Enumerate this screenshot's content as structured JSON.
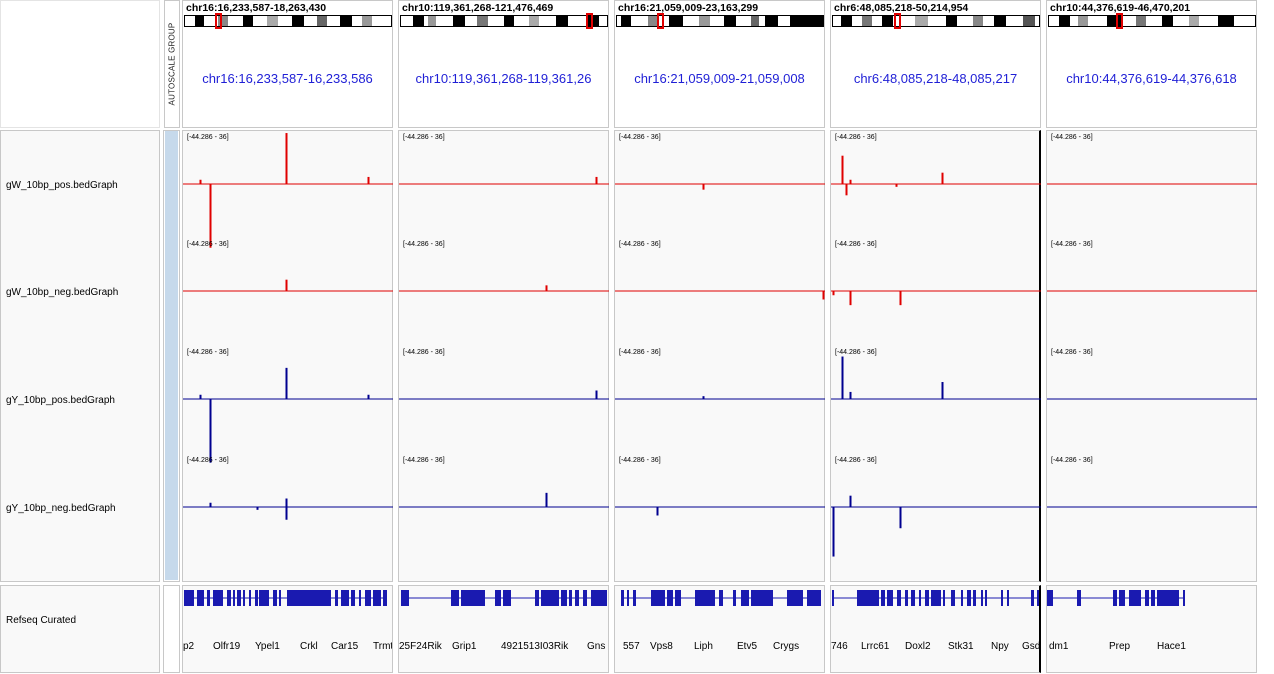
{
  "header": {
    "autoscale_label": "AUTOSCALE GROUP"
  },
  "tracks": [
    {
      "name": "gW_10bp_pos.bedGraph",
      "color": "#e00000"
    },
    {
      "name": "gW_10bp_neg.bedGraph",
      "color": "#e00000"
    },
    {
      "name": "gY_10bp_pos.bedGraph",
      "color": "#000090"
    },
    {
      "name": "gY_10bp_neg.bedGraph",
      "color": "#000090"
    }
  ],
  "data_range": "[-44.286 - 36]",
  "annotation_track": {
    "name": "Refseq Curated",
    "color": "#1a1ab0"
  },
  "panels": [
    {
      "locus": "chr16:16,233,587-18,263,430",
      "center": "chr16:16,233,587-16,233,586",
      "genes": [
        "p2",
        "Olfr19",
        "Ypel1",
        "Crkl",
        "Car15",
        "Trmt"
      ],
      "signals": [
        [
          [
            0.08,
            3
          ],
          [
            0.13,
            -45
          ],
          [
            0.49,
            36
          ],
          [
            0.88,
            5
          ]
        ],
        [
          [
            0.49,
            8
          ]
        ],
        [
          [
            0.08,
            3
          ],
          [
            0.13,
            -45
          ],
          [
            0.49,
            22
          ],
          [
            0.88,
            3
          ]
        ],
        [
          [
            0.13,
            3
          ],
          [
            0.35,
            -2
          ],
          [
            0.49,
            -9
          ],
          [
            0.49,
            6
          ]
        ]
      ]
    },
    {
      "locus": "chr10:119,361,268-121,476,469",
      "center": "chr10:119,361,268-119,361,26",
      "genes": [
        "25F24Rik",
        "Grip1",
        "4921513I03Rik",
        "Gns"
      ],
      "signals": [
        [
          [
            0.94,
            5
          ]
        ],
        [
          [
            0.7,
            4
          ]
        ],
        [
          [
            0.94,
            6
          ]
        ],
        [
          [
            0.7,
            10
          ]
        ]
      ]
    },
    {
      "locus": "chr16:21,059,009-23,163,299",
      "center": "chr16:21,059,009-21,059,008",
      "genes": [
        "557",
        "Vps8",
        "Liph",
        "Etv5",
        "Crygs"
      ],
      "signals": [
        [
          [
            0.42,
            -4
          ]
        ],
        [
          [
            0.99,
            -6
          ]
        ],
        [
          [
            0.42,
            2
          ]
        ],
        [
          [
            0.2,
            -6
          ]
        ]
      ]
    },
    {
      "locus": "chr6:48,085,218-50,214,954",
      "center": "chr6:48,085,218-48,085,217",
      "genes": [
        "746",
        "Lrrc61",
        "Doxl2",
        "Stk31",
        "Npy",
        "Gsd"
      ],
      "signals": [
        [
          [
            0.05,
            20
          ],
          [
            0.07,
            -8
          ],
          [
            0.09,
            3
          ],
          [
            0.31,
            -2
          ],
          [
            0.53,
            8
          ]
        ],
        [
          [
            0.01,
            -3
          ],
          [
            0.09,
            -10
          ],
          [
            0.33,
            -10
          ]
        ],
        [
          [
            0.05,
            30
          ],
          [
            0.09,
            5
          ],
          [
            0.53,
            12
          ]
        ],
        [
          [
            0.01,
            -35
          ],
          [
            0.09,
            8
          ],
          [
            0.33,
            -15
          ]
        ]
      ]
    },
    {
      "locus": "chr10:44,376,619-46,470,201",
      "center": "chr10:44,376,619-44,376,618",
      "genes": [
        "dm1",
        "Prep",
        "Hace1"
      ],
      "signals": [
        [],
        [],
        [],
        []
      ]
    }
  ]
}
